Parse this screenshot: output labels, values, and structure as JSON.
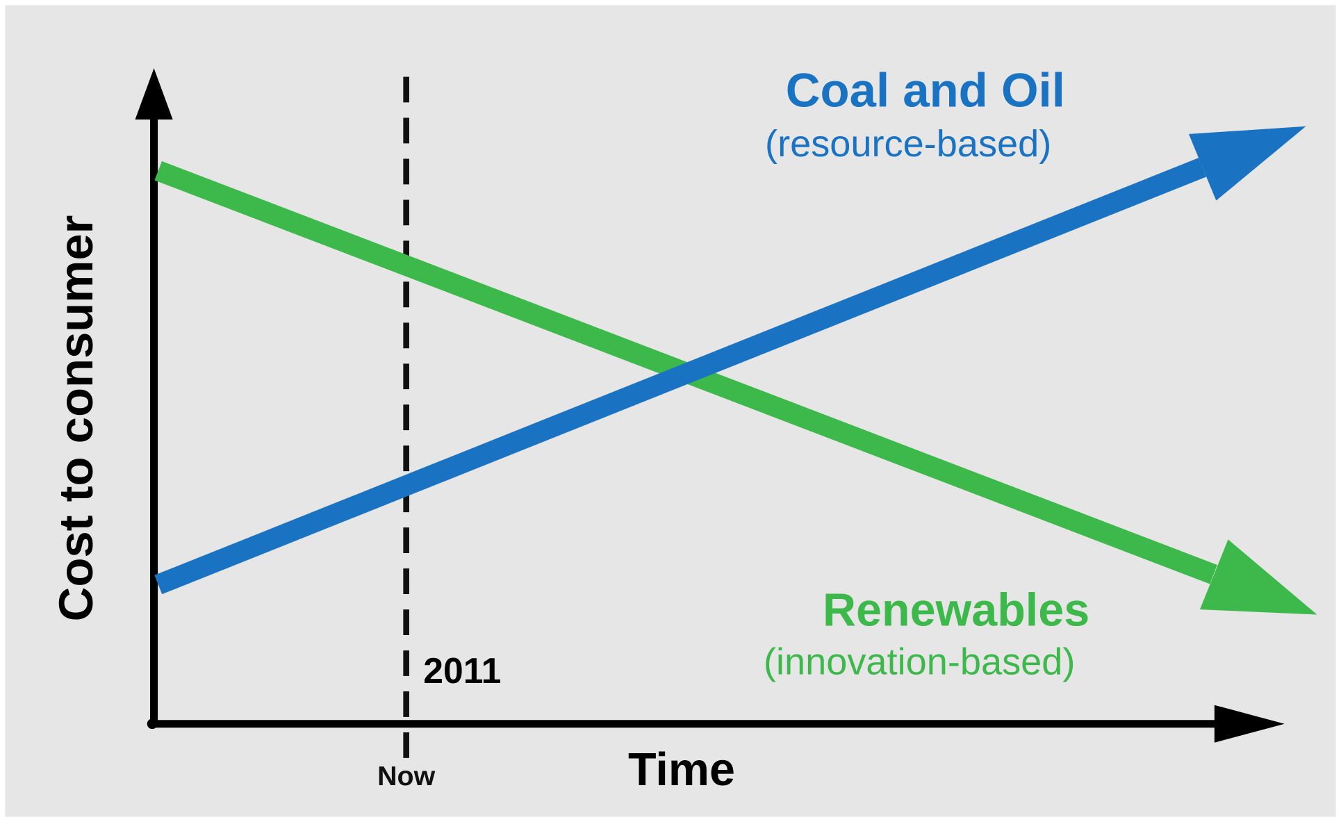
{
  "y_axis_label": "Cost to consumer",
  "x_axis_label": "Time",
  "marker": {
    "label": "Now",
    "year": "2011"
  },
  "lines": [
    {
      "title": "Coal and Oil",
      "subtitle": "(resource-based)"
    },
    {
      "title": "Renewables",
      "subtitle": "(innovation-based)"
    }
  ]
}
